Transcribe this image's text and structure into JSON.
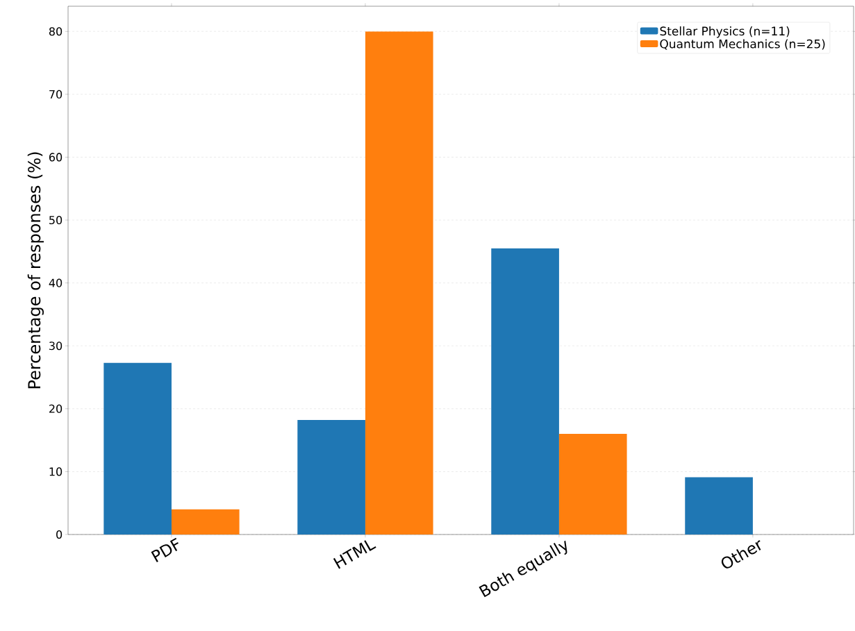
{
  "chart_data": {
    "type": "bar",
    "ylabel": "Percentage of responses (%)",
    "categories": [
      "PDF",
      "HTML",
      "Both equally",
      "Other"
    ],
    "series": [
      {
        "name": "Stellar Physics (n=11)",
        "color": "#1f77b4",
        "values": [
          27.3,
          18.2,
          45.5,
          9.1
        ]
      },
      {
        "name": "Quantum Mechanics (n=25)",
        "color": "#ff7f0e",
        "values": [
          4,
          80,
          16,
          0
        ]
      }
    ],
    "ylim": [
      0,
      84
    ],
    "yticks": [
      0,
      10,
      20,
      30,
      40,
      50,
      60,
      70,
      80
    ],
    "grid": "y",
    "legend": "top right"
  }
}
